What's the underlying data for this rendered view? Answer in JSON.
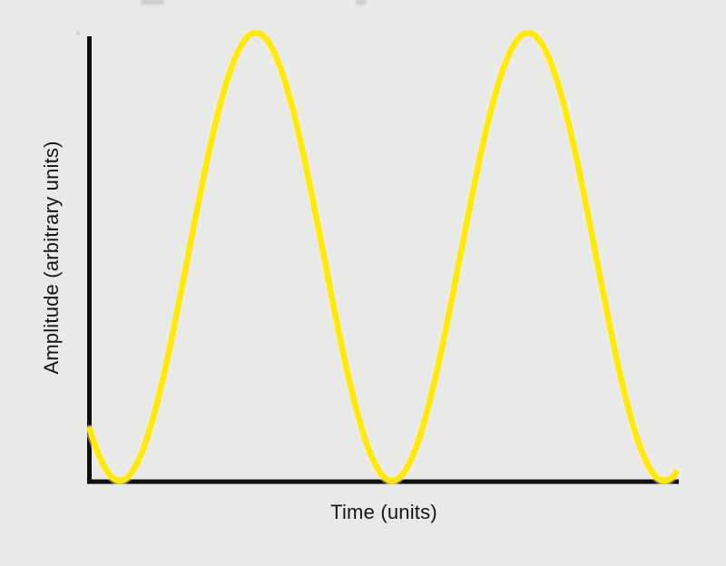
{
  "chart_data": {
    "type": "line",
    "title": "",
    "xlabel": "Time (units)",
    "ylabel": "Amplitude (arbitrary units)",
    "grid": false,
    "legend": null,
    "x_axis": {
      "ticks": [],
      "unit": "periods",
      "range_units": [
        0,
        2.16
      ]
    },
    "y_axis": {
      "ticks": [],
      "unit": "arbitrary units",
      "range_units": [
        0,
        1
      ]
    },
    "series": [
      {
        "name": "sine wave",
        "color": "#ffe714",
        "halo_color": "#fff4a8",
        "waveform": {
          "shape": "sine",
          "periods_visible": 2.157,
          "first_min_at_period": 0.11,
          "min_amplitude": 0,
          "max_amplitude": 1
        },
        "points": [
          {
            "t": 0.0,
            "a": 0.11
          },
          {
            "t": 0.11,
            "a": 0.0
          },
          {
            "t": 0.36,
            "a": 0.5
          },
          {
            "t": 0.61,
            "a": 1.0
          },
          {
            "t": 0.86,
            "a": 0.5
          },
          {
            "t": 1.11,
            "a": 0.0
          },
          {
            "t": 1.36,
            "a": 0.5
          },
          {
            "t": 1.61,
            "a": 1.0
          },
          {
            "t": 1.86,
            "a": 0.5
          },
          {
            "t": 2.11,
            "a": 0.0
          },
          {
            "t": 2.16,
            "a": 0.02
          }
        ]
      }
    ],
    "colors": {
      "background": "#e9e9e7",
      "axis": "#0f0f0f",
      "label_text": "#141414"
    }
  }
}
